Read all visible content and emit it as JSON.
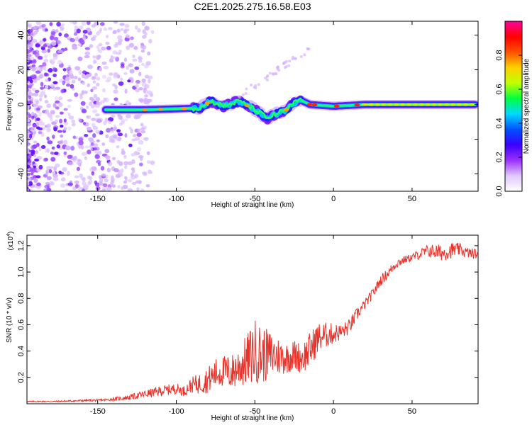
{
  "figure_title": "C2E1.2025.275.16.58.E03",
  "colors": {
    "snr_line": "#e8322a",
    "axis": "#000000"
  },
  "chart_data": [
    {
      "type": "heatmap",
      "title": "C2E1.2025.275.16.58.E03",
      "xlabel": "Height of straight line (km)",
      "ylabel": "Frequency (Hz)",
      "xlim": [
        -195,
        92
      ],
      "ylim": [
        -50,
        48
      ],
      "xticks": [
        "-150",
        "-100",
        "-50",
        "0",
        "50"
      ],
      "xtick_values": [
        -150,
        -100,
        -50,
        0,
        50
      ],
      "yticks": [
        "40",
        "20",
        "0",
        "-20",
        "-40"
      ],
      "ytick_values": [
        40,
        20,
        0,
        -20,
        -40
      ],
      "colorbar": {
        "label": "Normalized spectral amplitude",
        "range": [
          0,
          1
        ],
        "ticks": [
          "0.0",
          "0.2",
          "0.4",
          "0.6",
          "0.8"
        ],
        "tick_values": [
          0.0,
          0.2,
          0.4,
          0.6,
          0.8
        ],
        "colormap": [
          "#ffffff",
          "#e0c8ff",
          "#9b30ff",
          "#3a00ff",
          "#0050ff",
          "#00d8ff",
          "#00ff40",
          "#c0ff00",
          "#ffd000",
          "#ff5000",
          "#ff0000",
          "#ff00a0"
        ]
      },
      "ridge": {
        "x": [
          -145,
          -120,
          -100,
          -85,
          -78,
          -70,
          -60,
          -50,
          -42,
          -38,
          -30,
          -22,
          -15,
          0,
          20,
          50,
          90
        ],
        "y": [
          -3,
          -3,
          -2.5,
          -2,
          2,
          -1,
          2,
          -3,
          -8,
          -6,
          -3,
          3,
          0,
          -1,
          0,
          0,
          0
        ]
      }
    },
    {
      "type": "line",
      "title": "",
      "xlabel": "Height of straight line (km)",
      "ylabel": "SNR (10 * v/v)",
      "scale_note": "(x10",
      "scale_exp": "4",
      "xlim": [
        -195,
        92
      ],
      "ylim": [
        0,
        1.28
      ],
      "xticks": [
        "-150",
        "-100",
        "-50",
        "0",
        "50"
      ],
      "xtick_values": [
        -150,
        -100,
        -50,
        0,
        50
      ],
      "yticks": [
        "1.2",
        "1.0",
        "0.8",
        "0.6",
        "0.4",
        "0.2"
      ],
      "ytick_values": [
        1.2,
        1.0,
        0.8,
        0.6,
        0.4,
        0.2
      ],
      "series": [
        {
          "name": "SNR",
          "x": [
            -195,
            -180,
            -160,
            -145,
            -130,
            -120,
            -110,
            -100,
            -95,
            -90,
            -85,
            -80,
            -75,
            -70,
            -65,
            -60,
            -55,
            -50,
            -45,
            -40,
            -35,
            -30,
            -25,
            -20,
            -15,
            -10,
            -5,
            0,
            5,
            10,
            15,
            20,
            25,
            30,
            35,
            40,
            45,
            50,
            55,
            60,
            65,
            70,
            75,
            80,
            85,
            92
          ],
          "y": [
            0.015,
            0.015,
            0.02,
            0.025,
            0.04,
            0.06,
            0.08,
            0.1,
            0.08,
            0.12,
            0.12,
            0.14,
            0.18,
            0.2,
            0.18,
            0.22,
            0.25,
            0.3,
            0.28,
            0.3,
            0.3,
            0.3,
            0.32,
            0.3,
            0.35,
            0.45,
            0.48,
            0.5,
            0.52,
            0.56,
            0.66,
            0.74,
            0.82,
            0.92,
            0.98,
            1.05,
            1.08,
            1.1,
            1.12,
            1.14,
            1.13,
            1.12,
            1.14,
            1.15,
            1.13,
            1.12
          ],
          "noise": [
            0.005,
            0.005,
            0.008,
            0.01,
            0.02,
            0.03,
            0.04,
            0.04,
            0.04,
            0.06,
            0.08,
            0.1,
            0.12,
            0.12,
            0.14,
            0.16,
            0.2,
            0.25,
            0.22,
            0.18,
            0.15,
            0.12,
            0.12,
            0.12,
            0.14,
            0.12,
            0.1,
            0.08,
            0.06,
            0.06,
            0.05,
            0.04,
            0.04,
            0.04,
            0.04,
            0.04,
            0.03,
            0.03,
            0.04,
            0.05,
            0.06,
            0.06,
            0.06,
            0.05,
            0.04,
            0.04
          ]
        }
      ]
    }
  ]
}
